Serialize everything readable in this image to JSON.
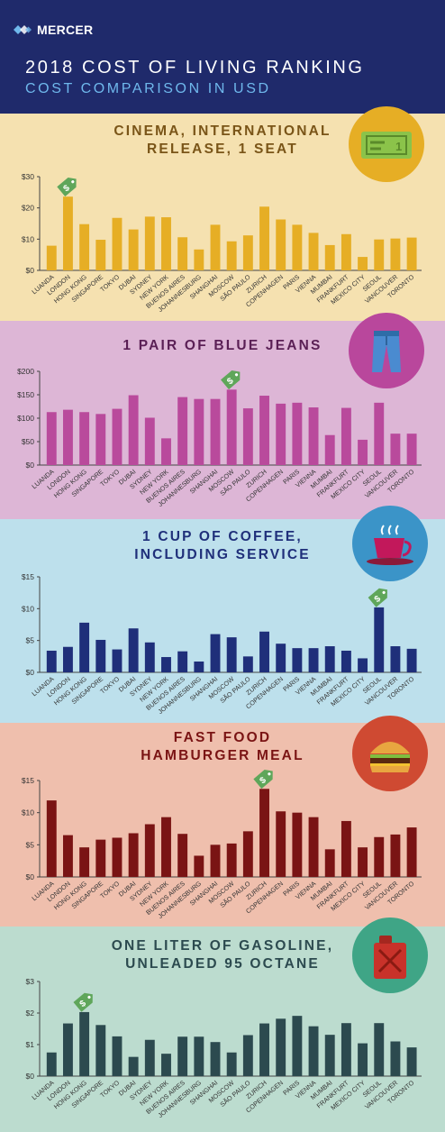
{
  "header": {
    "brand": "MERCER",
    "title": "2018 COST OF LIVING RANKING",
    "subtitle": "COST COMPARISON IN USD"
  },
  "colors": {
    "header_bg": "#1f2a6b",
    "header_subtitle": "#6fb8ec",
    "tag": "#5fa65a"
  },
  "cities": [
    "LUANDA",
    "LONDON",
    "HONG KONG",
    "SINGAPORE",
    "TOKYO",
    "DUBAI",
    "SYDNEY",
    "NEW YORK",
    "BUENOS AIRES",
    "JOHANNESBURG",
    "SHANGHAI",
    "MOSCOW",
    "SÃO PAULO",
    "ZURICH",
    "COPENHAGEN",
    "PARIS",
    "VIENNA",
    "MUMBAI",
    "FRANKFURT",
    "MEXICO CITY",
    "SEOUL",
    "VANCOUVER",
    "TORONTO"
  ],
  "panels": [
    {
      "id": "cinema",
      "title_lines": [
        "CINEMA, INTERNATIONAL",
        "RELEASE, 1 SEAT"
      ],
      "bg": "#f5e1b0",
      "bar_color": "#e6ae25",
      "title_color": "#7a5518",
      "icon_bg": "#e6ae25",
      "icon": "ticket-icon"
    },
    {
      "id": "jeans",
      "title_lines": [
        "1 PAIR OF BLUE JEANS"
      ],
      "bg": "#ddb6d6",
      "bar_color": "#b94a9c",
      "title_color": "#5a1f55",
      "icon_bg": "#b9479c",
      "icon": "jeans-icon"
    },
    {
      "id": "coffee",
      "title_lines": [
        "1 CUP OF COFFEE,",
        "INCLUDING SERVICE"
      ],
      "bg": "#bde0ec",
      "bar_color": "#1f2f7a",
      "title_color": "#1f2f7a",
      "icon_bg": "#3b94c8",
      "icon": "coffee-cup-icon"
    },
    {
      "id": "burger",
      "title_lines": [
        "FAST FOOD",
        "HAMBURGER MEAL"
      ],
      "bg": "#efbfad",
      "bar_color": "#7a1414",
      "title_color": "#7a1414",
      "icon_bg": "#cf4a32",
      "icon": "hamburger-icon"
    },
    {
      "id": "gas",
      "title_lines": [
        "ONE LITER OF GASOLINE,",
        "UNLEADED 95 OCTANE"
      ],
      "bg": "#bcdccf",
      "bar_color": "#2c4a4f",
      "title_color": "#2c4a4f",
      "icon_bg": "#3fa586",
      "icon": "gas-can-icon"
    }
  ],
  "chart_data": [
    {
      "type": "bar",
      "title": "CINEMA, INTERNATIONAL RELEASE, 1 SEAT",
      "ylim": [
        0,
        30
      ],
      "yticks": [
        "$0",
        "$10",
        "$20",
        "$30"
      ],
      "tagged": "LONDON",
      "categories": [
        "LUANDA",
        "LONDON",
        "HONG KONG",
        "SINGAPORE",
        "TOKYO",
        "DUBAI",
        "SYDNEY",
        "NEW YORK",
        "BUENOS AIRES",
        "JOHANNESBURG",
        "SHANGHAI",
        "MOSCOW",
        "SÃO PAULO",
        "ZURICH",
        "COPENHAGEN",
        "PARIS",
        "VIENNA",
        "MUMBAI",
        "FRANKFURT",
        "MEXICO CITY",
        "SEOUL",
        "VANCOUVER",
        "TORONTO"
      ],
      "values": [
        7.9,
        23.6,
        14.8,
        9.8,
        16.8,
        13.1,
        17.2,
        17.0,
        10.6,
        6.7,
        14.6,
        9.3,
        11.2,
        20.4,
        16.3,
        14.6,
        12.0,
        8.1,
        11.6,
        4.3,
        9.9,
        10.2,
        10.5
      ]
    },
    {
      "type": "bar",
      "title": "1 PAIR OF BLUE JEANS",
      "ylim": [
        0,
        200
      ],
      "yticks": [
        "$0",
        "$50",
        "$100",
        "$150",
        "$200"
      ],
      "tagged": "MOSCOW",
      "categories": [
        "LUANDA",
        "LONDON",
        "HONG KONG",
        "SINGAPORE",
        "TOKYO",
        "DUBAI",
        "SYDNEY",
        "NEW YORK",
        "BUENOS AIRES",
        "JOHANNESBURG",
        "SHANGHAI",
        "MOSCOW",
        "SÃO PAULO",
        "ZURICH",
        "COPENHAGEN",
        "PARIS",
        "VIENNA",
        "MUMBAI",
        "FRANKFURT",
        "MEXICO CITY",
        "SEOUL",
        "VANCOUVER",
        "TORONTO"
      ],
      "values": [
        113,
        118,
        113,
        109,
        120,
        149,
        101,
        57,
        145,
        141,
        141,
        161,
        121,
        148,
        131,
        133,
        123,
        64,
        122,
        54,
        133,
        67,
        67
      ]
    },
    {
      "type": "bar",
      "title": "1 CUP OF COFFEE, INCLUDING SERVICE",
      "ylim": [
        0,
        15
      ],
      "yticks": [
        "$0",
        "$5",
        "$10",
        "$15"
      ],
      "tagged": "SEOUL",
      "categories": [
        "LUANDA",
        "LONDON",
        "HONG KONG",
        "SINGAPORE",
        "TOKYO",
        "DUBAI",
        "SYDNEY",
        "NEW YORK",
        "BUENOS AIRES",
        "JOHANNESBURG",
        "SHANGHAI",
        "MOSCOW",
        "SÃO PAULO",
        "ZURICH",
        "COPENHAGEN",
        "PARIS",
        "VIENNA",
        "MUMBAI",
        "FRANKFURT",
        "MEXICO CITY",
        "SEOUL",
        "VANCOUVER",
        "TORONTO"
      ],
      "values": [
        3.4,
        4.0,
        7.8,
        5.1,
        3.6,
        6.9,
        4.7,
        2.4,
        3.3,
        1.7,
        6.0,
        5.5,
        2.5,
        6.4,
        4.5,
        3.8,
        3.8,
        4.1,
        3.4,
        2.2,
        10.2,
        4.1,
        3.7
      ]
    },
    {
      "type": "bar",
      "title": "FAST FOOD HAMBURGER MEAL",
      "ylim": [
        0,
        15
      ],
      "yticks": [
        "$0",
        "$5",
        "$10",
        "$15"
      ],
      "tagged": "ZURICH",
      "categories": [
        "LUANDA",
        "LONDON",
        "HONG KONG",
        "SINGAPORE",
        "TOKYO",
        "DUBAI",
        "SYDNEY",
        "NEW YORK",
        "BUENOS AIRES",
        "JOHANNESBURG",
        "SHANGHAI",
        "MOSCOW",
        "SÃO PAULO",
        "ZURICH",
        "COPENHAGEN",
        "PARIS",
        "VIENNA",
        "MUMBAI",
        "FRANKFURT",
        "MEXICO CITY",
        "SEOUL",
        "VANCOUVER",
        "TORONTO"
      ],
      "values": [
        11.9,
        6.5,
        4.6,
        5.8,
        6.1,
        6.8,
        8.2,
        9.3,
        6.7,
        3.3,
        5.0,
        5.2,
        7.1,
        13.7,
        10.2,
        10.0,
        9.3,
        4.3,
        8.7,
        4.6,
        6.2,
        6.6,
        7.7
      ]
    },
    {
      "type": "bar",
      "title": "ONE LITER OF GASOLINE, UNLEADED 95 OCTANE",
      "ylim": [
        0,
        3
      ],
      "yticks": [
        "$0",
        "$1",
        "$2",
        "$3"
      ],
      "tagged": "HONG KONG",
      "categories": [
        "LUANDA",
        "LONDON",
        "HONG KONG",
        "SINGAPORE",
        "TOKYO",
        "DUBAI",
        "SYDNEY",
        "NEW YORK",
        "BUENOS AIRES",
        "JOHANNESBURG",
        "SHANGHAI",
        "MOSCOW",
        "SÃO PAULO",
        "ZURICH",
        "COPENHAGEN",
        "PARIS",
        "VIENNA",
        "MUMBAI",
        "FRANKFURT",
        "MEXICO CITY",
        "SEOUL",
        "VANCOUVER",
        "TORONTO"
      ],
      "values": [
        0.75,
        1.67,
        2.03,
        1.62,
        1.26,
        0.61,
        1.15,
        0.71,
        1.25,
        1.25,
        1.08,
        0.75,
        1.3,
        1.67,
        1.82,
        1.91,
        1.58,
        1.31,
        1.68,
        1.04,
        1.68,
        1.1,
        0.91
      ]
    }
  ]
}
